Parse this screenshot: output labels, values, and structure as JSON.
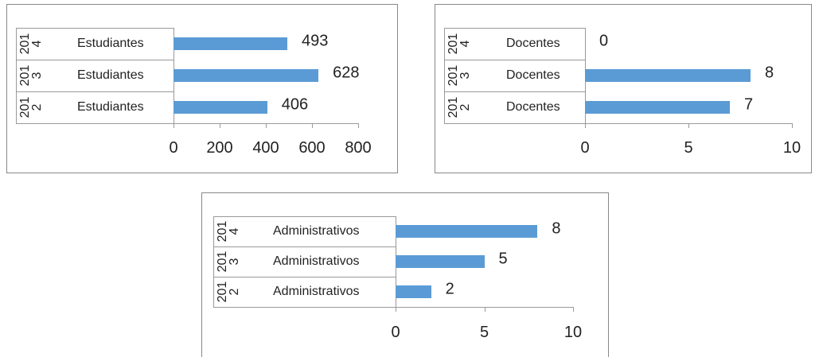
{
  "chart_data": [
    {
      "type": "bar",
      "years": [
        "2014",
        "2013",
        "2012"
      ],
      "categories": [
        "Estudiantes",
        "Estudiantes",
        "Estudiantes"
      ],
      "values": [
        493,
        628,
        406
      ],
      "color": "#5b9bd5",
      "xlim": [
        0,
        800
      ],
      "xticks": [
        0,
        200,
        400,
        600,
        800
      ]
    },
    {
      "type": "bar",
      "years": [
        "2014",
        "2013",
        "2012"
      ],
      "categories": [
        "Docentes",
        "Docentes",
        "Docentes"
      ],
      "values": [
        0,
        8,
        7
      ],
      "color": "#5b9bd5",
      "xlim": [
        0,
        10
      ],
      "xticks": [
        0,
        5,
        10
      ]
    },
    {
      "type": "bar",
      "years": [
        "2014",
        "2013",
        "2012"
      ],
      "categories": [
        "Administrativos",
        "Administrativos",
        "Administrativos"
      ],
      "values": [
        8,
        5,
        2
      ],
      "color": "#5b9bd5",
      "xlim": [
        0,
        10
      ],
      "xticks": [
        0,
        5,
        10
      ]
    }
  ]
}
